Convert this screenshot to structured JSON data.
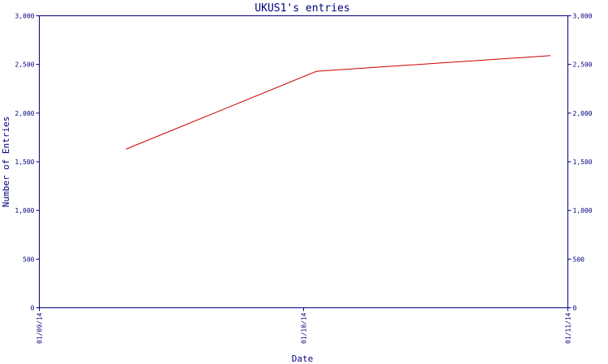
{
  "chart_data": {
    "type": "line",
    "title": "UKUS1's entries",
    "xlabel": "Date",
    "ylabel": "Number of Entries",
    "x_ticks": [
      "01/09/14",
      "01/10/14",
      "01/11/14"
    ],
    "y_ticks": [
      "0",
      "500",
      "1,000",
      "1,500",
      "2,000",
      "2,500",
      "3,000"
    ],
    "xlim": [
      "2014-09-01",
      "2014-11-01"
    ],
    "ylim": [
      0,
      3000
    ],
    "grid": false,
    "series": [
      {
        "color": "#cc0000",
        "x": [
          "2014-09-11",
          "2014-10-03",
          "2014-10-30"
        ],
        "y": [
          1630,
          2430,
          2590
        ]
      }
    ],
    "axis_color": "#000080"
  }
}
